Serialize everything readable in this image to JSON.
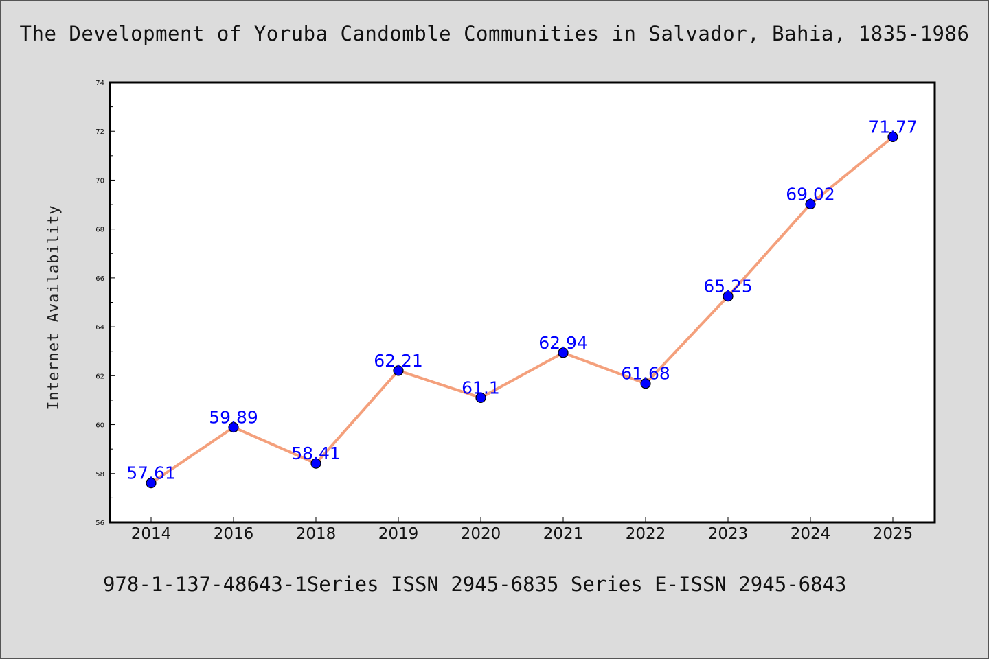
{
  "chart_title": "The Development of Yoruba Candomble Communities in Salvador, Bahia, 1835-1986",
  "footer": "978-1-137-48643-1Series ISSN 2945-6835 Series E-ISSN 2945-6843",
  "colors": {
    "background": "#dcdcdc",
    "plot_background": "#ffffff",
    "line": "#f4a07c",
    "marker": "#0000ff",
    "data_label": "#0000ff"
  },
  "chart_data": {
    "type": "line",
    "title": "The Development of Yoruba Candomble Communities in Salvador, Bahia, 1835-1986",
    "xlabel": "",
    "ylabel": "Internet Availability",
    "categories": [
      "2014",
      "2016",
      "2018",
      "2019",
      "2020",
      "2021",
      "2022",
      "2023",
      "2024",
      "2025"
    ],
    "series": [
      {
        "values": [
          57.61,
          59.89,
          58.41,
          62.21,
          61.1,
          62.94,
          61.68,
          65.25,
          69.02,
          71.77
        ],
        "labels": [
          "57.61",
          "59.89",
          "58.41",
          "62.21",
          "61.1",
          "62.94",
          "61.68",
          "65.25",
          "69.02",
          "71.77"
        ]
      }
    ],
    "ylim": [
      56,
      74
    ],
    "yticks": [
      56,
      58,
      60,
      62,
      64,
      66,
      68,
      70,
      72,
      74
    ],
    "ytick_labels": [
      "56",
      "58",
      "60",
      "62",
      "64",
      "66",
      "68",
      "70",
      "72",
      "74"
    ],
    "grid": false,
    "legend": "none",
    "markers": true,
    "data_labels": true
  }
}
